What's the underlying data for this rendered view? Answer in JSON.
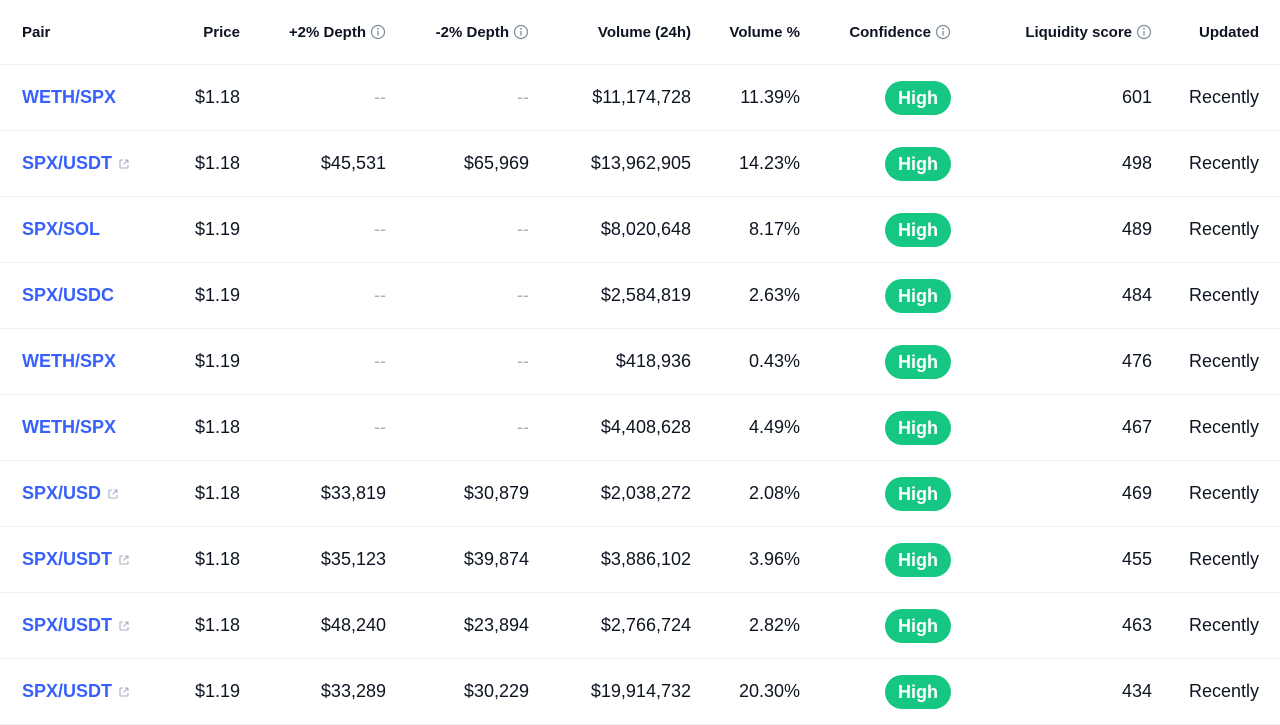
{
  "columns": {
    "pair": "Pair",
    "price": "Price",
    "plus_depth": "+2% Depth",
    "minus_depth": "-2% Depth",
    "volume": "Volume (24h)",
    "volume_pct": "Volume %",
    "confidence": "Confidence",
    "liquidity": "Liquidity score",
    "updated": "Updated"
  },
  "rows": [
    {
      "pair": "WETH/SPX",
      "external": false,
      "price": "$1.18",
      "plus_depth": "--",
      "minus_depth": "--",
      "volume": "$11,174,728",
      "volume_pct": "11.39%",
      "confidence": "High",
      "liquidity": "601",
      "updated": "Recently"
    },
    {
      "pair": "SPX/USDT",
      "external": true,
      "price": "$1.18",
      "plus_depth": "$45,531",
      "minus_depth": "$65,969",
      "volume": "$13,962,905",
      "volume_pct": "14.23%",
      "confidence": "High",
      "liquidity": "498",
      "updated": "Recently"
    },
    {
      "pair": "SPX/SOL",
      "external": false,
      "price": "$1.19",
      "plus_depth": "--",
      "minus_depth": "--",
      "volume": "$8,020,648",
      "volume_pct": "8.17%",
      "confidence": "High",
      "liquidity": "489",
      "updated": "Recently"
    },
    {
      "pair": "SPX/USDC",
      "external": false,
      "price": "$1.19",
      "plus_depth": "--",
      "minus_depth": "--",
      "volume": "$2,584,819",
      "volume_pct": "2.63%",
      "confidence": "High",
      "liquidity": "484",
      "updated": "Recently"
    },
    {
      "pair": "WETH/SPX",
      "external": false,
      "price": "$1.19",
      "plus_depth": "--",
      "minus_depth": "--",
      "volume": "$418,936",
      "volume_pct": "0.43%",
      "confidence": "High",
      "liquidity": "476",
      "updated": "Recently"
    },
    {
      "pair": "WETH/SPX",
      "external": false,
      "price": "$1.18",
      "plus_depth": "--",
      "minus_depth": "--",
      "volume": "$4,408,628",
      "volume_pct": "4.49%",
      "confidence": "High",
      "liquidity": "467",
      "updated": "Recently"
    },
    {
      "pair": "SPX/USD",
      "external": true,
      "price": "$1.18",
      "plus_depth": "$33,819",
      "minus_depth": "$30,879",
      "volume": "$2,038,272",
      "volume_pct": "2.08%",
      "confidence": "High",
      "liquidity": "469",
      "updated": "Recently"
    },
    {
      "pair": "SPX/USDT",
      "external": true,
      "price": "$1.18",
      "plus_depth": "$35,123",
      "minus_depth": "$39,874",
      "volume": "$3,886,102",
      "volume_pct": "3.96%",
      "confidence": "High",
      "liquidity": "455",
      "updated": "Recently"
    },
    {
      "pair": "SPX/USDT",
      "external": true,
      "price": "$1.18",
      "plus_depth": "$48,240",
      "minus_depth": "$23,894",
      "volume": "$2,766,724",
      "volume_pct": "2.82%",
      "confidence": "High",
      "liquidity": "463",
      "updated": "Recently"
    },
    {
      "pair": "SPX/USDT",
      "external": true,
      "price": "$1.19",
      "plus_depth": "$33,289",
      "minus_depth": "$30,229",
      "volume": "$19,914,732",
      "volume_pct": "20.30%",
      "confidence": "High",
      "liquidity": "434",
      "updated": "Recently"
    }
  ],
  "icons": {
    "external": "external-link-icon",
    "info": "info-icon"
  },
  "colors": {
    "link": "#3861fb",
    "badge_high": "#16c784",
    "muted": "#a6b0c3",
    "text": "#0d1421",
    "divider": "#eef0f4"
  }
}
